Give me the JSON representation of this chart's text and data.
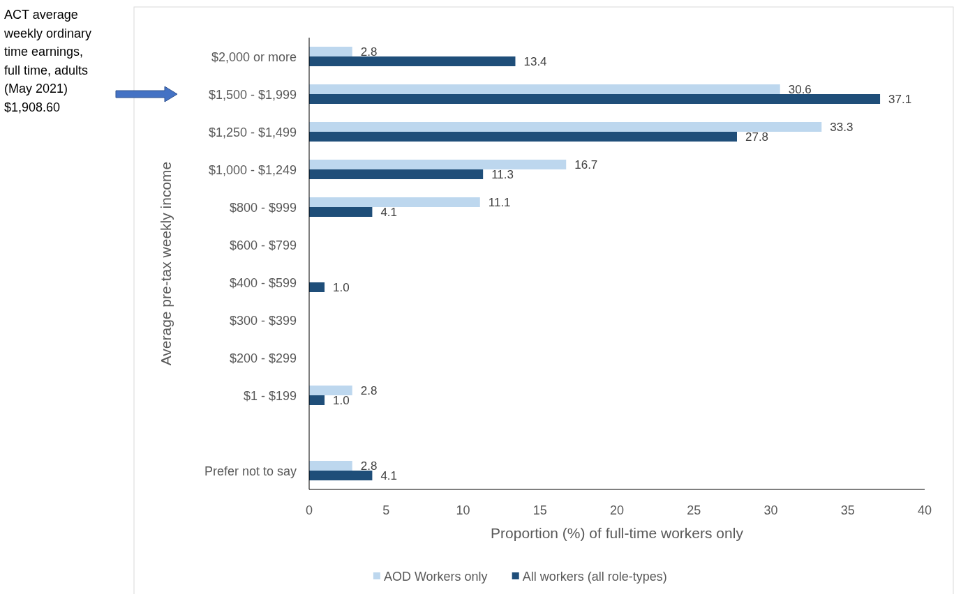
{
  "chart_data": {
    "type": "bar",
    "orientation": "horizontal",
    "xlabel": "Proportion (%) of full-time workers only",
    "ylabel": "Average pre-tax weekly income",
    "categories": [
      "$2,000 or more",
      "$1,500 - $1,999",
      "$1,250 - $1,499",
      "$1,000 - $1,249",
      "$800 - $999",
      "$600 - $799",
      "$400 - $599",
      "$300 - $399",
      "$200 - $299",
      "$1 - $199",
      null,
      "Prefer not to say"
    ],
    "series": [
      {
        "name": "AOD Workers only",
        "color": "#bdd7ee",
        "values": [
          2.8,
          30.6,
          33.3,
          16.7,
          11.1,
          null,
          null,
          null,
          null,
          2.8,
          null,
          2.8
        ],
        "value_labels": [
          "2.8",
          "30.6",
          "33.3",
          "16.7",
          "11.1",
          null,
          null,
          null,
          null,
          "2.8",
          null,
          "2.8"
        ]
      },
      {
        "name": "All workers (all role-types)",
        "color": "#1f4e79",
        "values": [
          13.4,
          37.1,
          27.8,
          11.3,
          4.1,
          null,
          1.0,
          null,
          null,
          1.0,
          null,
          4.1
        ],
        "value_labels": [
          "13.4",
          "37.1",
          "27.8",
          "11.3",
          "4.1",
          null,
          "1.0",
          null,
          null,
          "1.0",
          null,
          "4.1"
        ]
      }
    ],
    "xlim": [
      0,
      40
    ],
    "xticks": [
      0,
      5,
      10,
      15,
      20,
      25,
      30,
      35,
      40
    ],
    "grid": false,
    "legend": "bottom",
    "annotations": [
      "ACT average\nweekly ordinary\ntime earnings,\nfull time, adults\n(May 2021)\n$1,908.60"
    ]
  }
}
